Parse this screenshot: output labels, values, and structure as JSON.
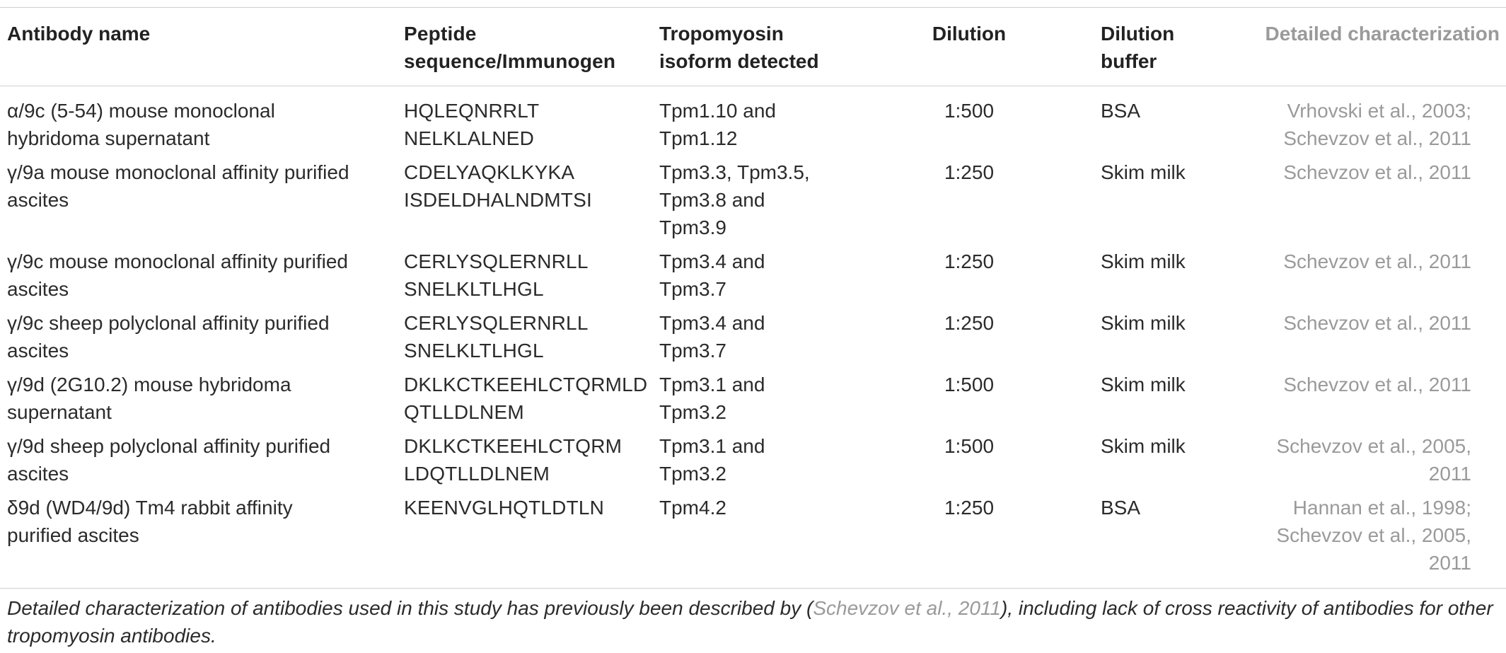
{
  "table": {
    "headers": [
      "Antibody name",
      "Peptide\nsequence/Immunogen",
      "Tropomyosin\nisoform detected",
      "Dilution",
      "Dilution\nbuffer",
      "Detailed characterization"
    ],
    "rows": [
      {
        "antibody": "α/9c (5-54) mouse monoclonal\nhybridoma supernatant",
        "peptide": "HQLEQNRRLT\nNELKLALNED",
        "isoform": "Tpm1.10 and\nTpm1.12",
        "dilution": "1:500",
        "buffer": "BSA",
        "reference": "Vrhovski et al., 2003;\nSchevzov et al., 2011"
      },
      {
        "antibody": "γ/9a mouse monoclonal affinity purified\nascites",
        "peptide": "CDELYAQKLKYKA\nISDELDHALNDMTSI",
        "isoform": "Tpm3.3, Tpm3.5,\nTpm3.8 and\nTpm3.9",
        "dilution": "1:250",
        "buffer": "Skim milk",
        "reference": "Schevzov et al., 2011"
      },
      {
        "antibody": "γ/9c mouse monoclonal affinity purified\nascites",
        "peptide": "CERLYSQLERNRLL\nSNELKLTLHGL",
        "isoform": "Tpm3.4 and\nTpm3.7",
        "dilution": "1:250",
        "buffer": "Skim milk",
        "reference": "Schevzov et al., 2011"
      },
      {
        "antibody": "γ/9c sheep polyclonal affinity purified\nascites",
        "peptide": "CERLYSQLERNRLL\nSNELKLTLHGL",
        "isoform": "Tpm3.4 and\nTpm3.7",
        "dilution": "1:250",
        "buffer": "Skim milk",
        "reference": "Schevzov et al., 2011"
      },
      {
        "antibody": "γ/9d (2G10.2) mouse hybridoma\nsupernatant",
        "peptide": "DKLKCTKEEHLCTQRMLD\nQTLLDLNEM",
        "isoform": "Tpm3.1 and\nTpm3.2",
        "dilution": "1:500",
        "buffer": "Skim milk",
        "reference": "Schevzov et al., 2011"
      },
      {
        "antibody": "γ/9d sheep polyclonal affinity purified\nascites",
        "peptide": "DKLKCTKEEHLCTQRM\nLDQTLLDLNEM",
        "isoform": "Tpm3.1 and\nTpm3.2",
        "dilution": "1:500",
        "buffer": "Skim milk",
        "reference": "Schevzov et al., 2005,\n2011"
      },
      {
        "antibody": "δ9d (WD4/9d) Tm4 rabbit affinity\npurified ascites",
        "peptide": "KEENVGLHQTLDTLN",
        "isoform": "Tpm4.2",
        "dilution": "1:250",
        "buffer": "BSA",
        "reference": "Hannan et al., 1998;\nSchevzov et al., 2005,\n2011"
      }
    ]
  },
  "footnote": {
    "before": "Detailed characterization of antibodies used in this study has previously been described by (",
    "ref": "Schevzov et al., 2011",
    "after": "), including lack of cross reactivity of antibodies for other tropomyosin antibodies."
  }
}
